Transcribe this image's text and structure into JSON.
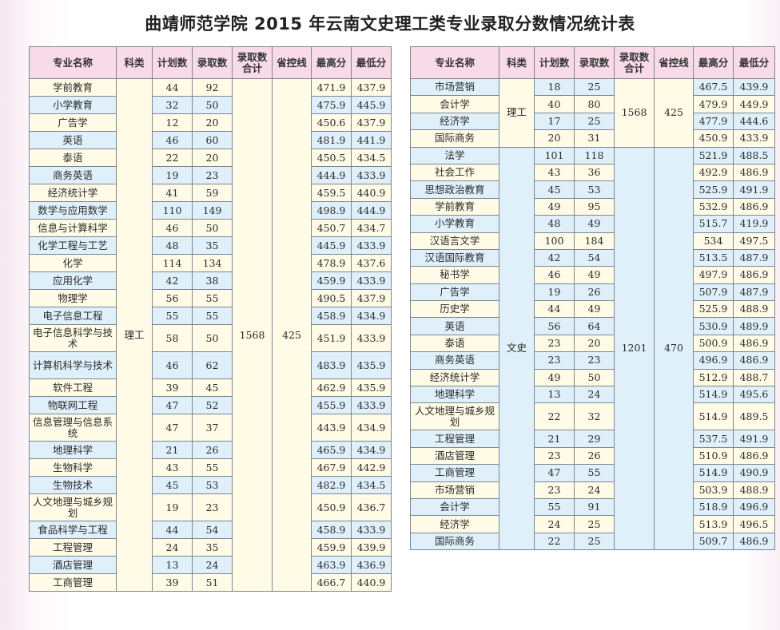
{
  "title": "曲靖师范学院 2015 年云南文史理工类专业录取分数情况统计表",
  "headers": [
    "专业名称",
    "科类",
    "计划数",
    "录取数",
    "录取数合计",
    "省控线",
    "最高分",
    "最低分"
  ],
  "colors": {
    "header": "#f8dbe7",
    "cream": "#fffbe6",
    "blue": "#dff0fb",
    "border": "#7d8590"
  },
  "tables": [
    {
      "groups": [
        {
          "category": "理工",
          "total": "1568",
          "control_line": "425",
          "rows": [
            [
              "学前教育",
              "44",
              "92",
              "471.9",
              "437.9"
            ],
            [
              "小学教育",
              "32",
              "50",
              "475.9",
              "445.9"
            ],
            [
              "广告学",
              "12",
              "20",
              "450.6",
              "437.9"
            ],
            [
              "英语",
              "46",
              "60",
              "481.9",
              "441.9"
            ],
            [
              "泰语",
              "22",
              "20",
              "450.5",
              "434.5"
            ],
            [
              "商务英语",
              "19",
              "23",
              "444.9",
              "433.9"
            ],
            [
              "经济统计学",
              "41",
              "59",
              "459.5",
              "440.9"
            ],
            [
              "数学与应用数学",
              "110",
              "149",
              "498.9",
              "444.9"
            ],
            [
              "信息与计算科学",
              "46",
              "50",
              "450.7",
              "434.7"
            ],
            [
              "化学工程与工艺",
              "48",
              "35",
              "445.9",
              "433.9"
            ],
            [
              "化学",
              "114",
              "134",
              "478.9",
              "437.6"
            ],
            [
              "应用化学",
              "42",
              "38",
              "459.9",
              "433.9"
            ],
            [
              "物理学",
              "56",
              "55",
              "490.5",
              "437.9"
            ],
            [
              "电子信息工程",
              "55",
              "55",
              "458.9",
              "434.9"
            ],
            [
              "电子信息科学与技术",
              "58",
              "50",
              "451.9",
              "433.9"
            ],
            [
              "计算机科学与技术",
              "46",
              "62",
              "483.9",
              "435.9"
            ],
            [
              "软件工程",
              "39",
              "45",
              "462.9",
              "435.9"
            ],
            [
              "物联网工程",
              "47",
              "52",
              "455.9",
              "433.9"
            ],
            [
              "信息管理与信息系统",
              "47",
              "37",
              "443.9",
              "434.9"
            ],
            [
              "地理科学",
              "21",
              "26",
              "465.9",
              "434.9"
            ],
            [
              "生物科学",
              "43",
              "55",
              "467.9",
              "442.9"
            ],
            [
              "生物技术",
              "45",
              "53",
              "482.9",
              "434.5"
            ],
            [
              "人文地理与城乡规划",
              "19",
              "23",
              "450.9",
              "436.7"
            ],
            [
              "食品科学与工程",
              "44",
              "54",
              "458.9",
              "433.9"
            ],
            [
              "工程管理",
              "24",
              "35",
              "459.9",
              "439.9"
            ],
            [
              "酒店管理",
              "13",
              "24",
              "463.9",
              "436.9"
            ],
            [
              "工商管理",
              "39",
              "51",
              "466.7",
              "440.9"
            ]
          ]
        }
      ]
    },
    {
      "groups": [
        {
          "category": "理工",
          "total": "1568",
          "control_line": "425",
          "rows": [
            [
              "市场营销",
              "18",
              "25",
              "467.5",
              "439.9"
            ],
            [
              "会计学",
              "40",
              "80",
              "479.9",
              "449.9"
            ],
            [
              "经济学",
              "17",
              "25",
              "477.9",
              "444.6"
            ],
            [
              "国际商务",
              "20",
              "31",
              "450.9",
              "433.9"
            ]
          ]
        },
        {
          "category": "文史",
          "total": "1201",
          "control_line": "470",
          "rows": [
            [
              "法学",
              "101",
              "118",
              "521.9",
              "488.5"
            ],
            [
              "社会工作",
              "43",
              "36",
              "492.9",
              "486.9"
            ],
            [
              "思想政治教育",
              "45",
              "53",
              "525.9",
              "491.9"
            ],
            [
              "学前教育",
              "49",
              "95",
              "532.9",
              "486.9"
            ],
            [
              "小学教育",
              "48",
              "49",
              "515.7",
              "419.9"
            ],
            [
              "汉语言文学",
              "100",
              "184",
              "534",
              "497.5"
            ],
            [
              "汉语国际教育",
              "42",
              "54",
              "513.5",
              "487.9"
            ],
            [
              "秘书学",
              "46",
              "49",
              "497.9",
              "486.9"
            ],
            [
              "广告学",
              "19",
              "26",
              "507.9",
              "487.9"
            ],
            [
              "历史学",
              "44",
              "49",
              "525.9",
              "488.9"
            ],
            [
              "英语",
              "56",
              "64",
              "530.9",
              "489.9"
            ],
            [
              "泰语",
              "23",
              "20",
              "500.9",
              "486.9"
            ],
            [
              "商务英语",
              "23",
              "23",
              "496.9",
              "486.9"
            ],
            [
              "经济统计学",
              "49",
              "50",
              "512.9",
              "488.7"
            ],
            [
              "地理科学",
              "13",
              "24",
              "514.9",
              "495.6"
            ],
            [
              "人文地理与城乡规划",
              "22",
              "32",
              "514.9",
              "489.5"
            ],
            [
              "工程管理",
              "21",
              "29",
              "537.5",
              "491.9"
            ],
            [
              "酒店管理",
              "23",
              "26",
              "510.9",
              "486.9"
            ],
            [
              "工商管理",
              "47",
              "55",
              "514.9",
              "490.9"
            ],
            [
              "市场营销",
              "23",
              "24",
              "503.9",
              "488.9"
            ],
            [
              "会计学",
              "55",
              "91",
              "518.9",
              "496.9"
            ],
            [
              "经济学",
              "24",
              "25",
              "513.9",
              "496.5"
            ],
            [
              "国际商务",
              "22",
              "25",
              "509.7",
              "486.9"
            ]
          ]
        }
      ]
    }
  ]
}
